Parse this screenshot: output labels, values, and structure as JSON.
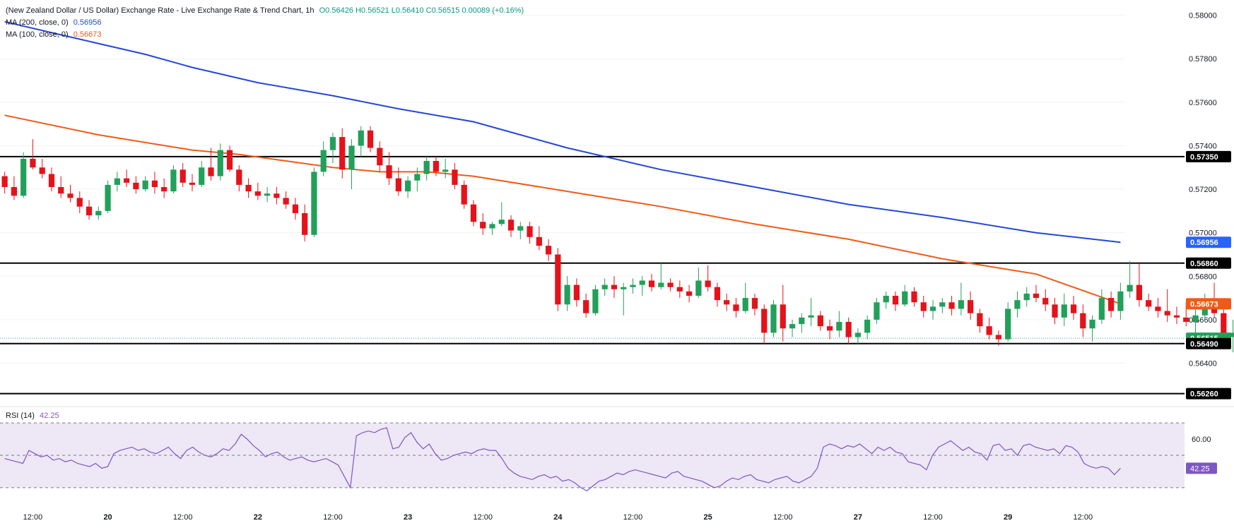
{
  "header": {
    "title": "(New Zealand Dollar / US Dollar) Exchange Rate - Live Exchange Rate & Trend Chart, 1h",
    "ohlc": "O0.56426  H0.56521  L0.56410  C0.56515  0.00089 (+0.16%)",
    "ma200_label": "MA (200, close, 0)",
    "ma200_value": "0.56956",
    "ma100_label": "MA (100, close, 0)",
    "ma100_value": "0.56673"
  },
  "rsi": {
    "label": "RSI (14)",
    "value": "42.25",
    "tick": "60.00",
    "tick_value": 60,
    "band": [
      30,
      70
    ],
    "range": [
      26,
      74
    ],
    "series": [
      48,
      47,
      46,
      45,
      53,
      51,
      49,
      50,
      47,
      48,
      46,
      47,
      45,
      44,
      43,
      45,
      42,
      43,
      51,
      53,
      54,
      55,
      53,
      54,
      52,
      51,
      53,
      55,
      51,
      48,
      53,
      55,
      52,
      50,
      49,
      51,
      54,
      53,
      57,
      63,
      60,
      56,
      53,
      49,
      51,
      52,
      49,
      47,
      48,
      49,
      47,
      46,
      47,
      48,
      46,
      44,
      37,
      30,
      62,
      64,
      65,
      64,
      66,
      67,
      54,
      55,
      61,
      64,
      58,
      54,
      57,
      51,
      47,
      48,
      50,
      51,
      52,
      51,
      53,
      54,
      53,
      53,
      48,
      42,
      39,
      37,
      36,
      35,
      37,
      38,
      36,
      37,
      34,
      35,
      33,
      30,
      28,
      31,
      34,
      35,
      37,
      39,
      38,
      40,
      41,
      40,
      39,
      38,
      37,
      36,
      39,
      40,
      37,
      36,
      35,
      34,
      32,
      30,
      31,
      34,
      36,
      35,
      37,
      38,
      35,
      34,
      33,
      35,
      36,
      37,
      34,
      33,
      35,
      37,
      42,
      55,
      57,
      56,
      54,
      56,
      55,
      57,
      54,
      51,
      55,
      53,
      55,
      52,
      51,
      46,
      45,
      44,
      41,
      50,
      55,
      57,
      59,
      56,
      53,
      55,
      52,
      51,
      47,
      56,
      57,
      53,
      54,
      50,
      56,
      57,
      55,
      54,
      53,
      54,
      51,
      56,
      55,
      52,
      45,
      43,
      42,
      43,
      42,
      38,
      42
    ],
    "colors": {
      "line": "#7e57c2",
      "band_fill": "#ede7f6",
      "band_line": "#787b86",
      "value_tag": "#7e57c2"
    }
  },
  "price_axis": {
    "ticks": [
      "0.58000",
      "0.57800",
      "0.57600",
      "0.57400",
      "0.57200",
      "0.57000",
      "0.56800",
      "0.56600",
      "0.56400"
    ],
    "tick_values": [
      0.58,
      0.578,
      0.576,
      0.574,
      0.572,
      0.57,
      0.568,
      0.566,
      0.564
    ]
  },
  "time_axis": {
    "labels": [
      "12:00",
      "20",
      "12:00",
      "22",
      "12:00",
      "23",
      "12:00",
      "24",
      "12:00",
      "25",
      "12:00",
      "27",
      "12:00",
      "29",
      "12:00"
    ],
    "positions": [
      3,
      11,
      19,
      27,
      35,
      43,
      51,
      59,
      67,
      75,
      83,
      91,
      99,
      107,
      115
    ]
  },
  "chart_data": {
    "type": "candlestick",
    "title": "(New Zealand Dollar / US Dollar) Exchange Rate - Live Exchange Rate & Trend Chart, 1h",
    "interval": "1h",
    "ylim": [
      0.5622,
      0.5807
    ],
    "x_domain": [
      -0.5,
      119.5
    ],
    "candles": [
      [
        0.5726,
        0.5728,
        0.5718,
        0.5721
      ],
      [
        0.5721,
        0.5726,
        0.5715,
        0.5717
      ],
      [
        0.5717,
        0.5737,
        0.5716,
        0.5734
      ],
      [
        0.5734,
        0.5743,
        0.5729,
        0.573
      ],
      [
        0.573,
        0.5734,
        0.5725,
        0.5727
      ],
      [
        0.5727,
        0.573,
        0.5719,
        0.5721
      ],
      [
        0.5721,
        0.5726,
        0.5716,
        0.5718
      ],
      [
        0.5718,
        0.5722,
        0.5714,
        0.5716
      ],
      [
        0.5716,
        0.5719,
        0.5709,
        0.5712
      ],
      [
        0.5712,
        0.5715,
        0.5706,
        0.5708
      ],
      [
        0.5708,
        0.5712,
        0.5706,
        0.571
      ],
      [
        0.571,
        0.5724,
        0.5709,
        0.5722
      ],
      [
        0.5722,
        0.5728,
        0.5719,
        0.5725
      ],
      [
        0.5725,
        0.5729,
        0.5721,
        0.5723
      ],
      [
        0.5723,
        0.5726,
        0.5718,
        0.572
      ],
      [
        0.572,
        0.5726,
        0.5719,
        0.5724
      ],
      [
        0.5724,
        0.5728,
        0.5718,
        0.5721
      ],
      [
        0.5721,
        0.5725,
        0.5716,
        0.5719
      ],
      [
        0.5719,
        0.5731,
        0.5718,
        0.5729
      ],
      [
        0.5729,
        0.5732,
        0.5721,
        0.5723
      ],
      [
        0.5723,
        0.5727,
        0.5719,
        0.5722
      ],
      [
        0.5722,
        0.5733,
        0.5721,
        0.573
      ],
      [
        0.573,
        0.5739,
        0.5724,
        0.5726
      ],
      [
        0.5726,
        0.5741,
        0.5724,
        0.5738
      ],
      [
        0.5738,
        0.574,
        0.5728,
        0.5729
      ],
      [
        0.5729,
        0.5731,
        0.5719,
        0.5722
      ],
      [
        0.5722,
        0.5725,
        0.5716,
        0.5719
      ],
      [
        0.5719,
        0.5723,
        0.5715,
        0.5717
      ],
      [
        0.5717,
        0.5721,
        0.5714,
        0.5718
      ],
      [
        0.5718,
        0.5721,
        0.5713,
        0.5716
      ],
      [
        0.5716,
        0.5719,
        0.5711,
        0.5713
      ],
      [
        0.5713,
        0.5716,
        0.5706,
        0.5709
      ],
      [
        0.5709,
        0.5713,
        0.5696,
        0.5699
      ],
      [
        0.5699,
        0.573,
        0.5698,
        0.5728
      ],
      [
        0.5728,
        0.5742,
        0.5726,
        0.5738
      ],
      [
        0.5738,
        0.5746,
        0.5732,
        0.5744
      ],
      [
        0.5744,
        0.5748,
        0.5725,
        0.5729
      ],
      [
        0.5729,
        0.5743,
        0.572,
        0.574
      ],
      [
        0.574,
        0.5749,
        0.5735,
        0.5747
      ],
      [
        0.5747,
        0.5749,
        0.5737,
        0.5739
      ],
      [
        0.5739,
        0.5742,
        0.5728,
        0.5731
      ],
      [
        0.5731,
        0.5737,
        0.5722,
        0.5725
      ],
      [
        0.5725,
        0.573,
        0.5717,
        0.5719
      ],
      [
        0.5719,
        0.5726,
        0.5716,
        0.5724
      ],
      [
        0.5724,
        0.573,
        0.5719,
        0.5727
      ],
      [
        0.5727,
        0.5735,
        0.5724,
        0.5733
      ],
      [
        0.5733,
        0.5735,
        0.5726,
        0.5728
      ],
      [
        0.5728,
        0.5734,
        0.5725,
        0.5729
      ],
      [
        0.5729,
        0.5732,
        0.572,
        0.5722
      ],
      [
        0.5722,
        0.5724,
        0.5711,
        0.5713
      ],
      [
        0.5713,
        0.5715,
        0.5703,
        0.5705
      ],
      [
        0.5705,
        0.5709,
        0.5699,
        0.5702
      ],
      [
        0.5702,
        0.5705,
        0.5699,
        0.5704
      ],
      [
        0.5704,
        0.5714,
        0.5703,
        0.5706
      ],
      [
        0.5706,
        0.5708,
        0.5698,
        0.5701
      ],
      [
        0.5701,
        0.5705,
        0.5697,
        0.5703
      ],
      [
        0.5703,
        0.5705,
        0.5695,
        0.5698
      ],
      [
        0.5698,
        0.5703,
        0.5692,
        0.5694
      ],
      [
        0.5694,
        0.5697,
        0.5687,
        0.569
      ],
      [
        0.569,
        0.5693,
        0.5664,
        0.5667
      ],
      [
        0.5667,
        0.568,
        0.5664,
        0.5676
      ],
      [
        0.5676,
        0.5679,
        0.5666,
        0.5669
      ],
      [
        0.5669,
        0.5672,
        0.5661,
        0.5663
      ],
      [
        0.5663,
        0.5676,
        0.5662,
        0.5674
      ],
      [
        0.5674,
        0.5679,
        0.5671,
        0.5676
      ],
      [
        0.5676,
        0.568,
        0.567,
        0.5674
      ],
      [
        0.5674,
        0.5677,
        0.5662,
        0.5675
      ],
      [
        0.5675,
        0.5679,
        0.5672,
        0.5676
      ],
      [
        0.5676,
        0.568,
        0.5671,
        0.5678
      ],
      [
        0.5678,
        0.5681,
        0.5673,
        0.5675
      ],
      [
        0.5675,
        0.5686,
        0.5674,
        0.5677
      ],
      [
        0.5677,
        0.5679,
        0.5673,
        0.5675
      ],
      [
        0.5675,
        0.5678,
        0.567,
        0.5673
      ],
      [
        0.5673,
        0.5676,
        0.5668,
        0.5671
      ],
      [
        0.5671,
        0.5684,
        0.567,
        0.5678
      ],
      [
        0.5678,
        0.5685,
        0.5673,
        0.5675
      ],
      [
        0.5675,
        0.5677,
        0.5666,
        0.5669
      ],
      [
        0.5669,
        0.5672,
        0.5664,
        0.5667
      ],
      [
        0.5667,
        0.567,
        0.5661,
        0.5664
      ],
      [
        0.5664,
        0.5677,
        0.5663,
        0.567
      ],
      [
        0.567,
        0.5672,
        0.5662,
        0.5665
      ],
      [
        0.5665,
        0.5667,
        0.5649,
        0.5654
      ],
      [
        0.5654,
        0.5669,
        0.5652,
        0.5667
      ],
      [
        0.5667,
        0.5676,
        0.565,
        0.5656
      ],
      [
        0.5656,
        0.566,
        0.5652,
        0.5658
      ],
      [
        0.5658,
        0.5663,
        0.5654,
        0.5661
      ],
      [
        0.5661,
        0.567,
        0.5657,
        0.5662
      ],
      [
        0.5662,
        0.5664,
        0.5655,
        0.5657
      ],
      [
        0.5657,
        0.566,
        0.5651,
        0.5655
      ],
      [
        0.5655,
        0.5664,
        0.5652,
        0.5659
      ],
      [
        0.5659,
        0.5661,
        0.5649,
        0.5652
      ],
      [
        0.5652,
        0.5656,
        0.5649,
        0.5654
      ],
      [
        0.5654,
        0.5662,
        0.5651,
        0.566
      ],
      [
        0.566,
        0.567,
        0.5658,
        0.5668
      ],
      [
        0.5668,
        0.5673,
        0.5665,
        0.5671
      ],
      [
        0.5671,
        0.5673,
        0.5664,
        0.5667
      ],
      [
        0.5667,
        0.5676,
        0.5666,
        0.5673
      ],
      [
        0.5673,
        0.5675,
        0.5666,
        0.5668
      ],
      [
        0.5668,
        0.5671,
        0.5661,
        0.5664
      ],
      [
        0.5664,
        0.5669,
        0.566,
        0.5666
      ],
      [
        0.5666,
        0.567,
        0.5663,
        0.5668
      ],
      [
        0.5668,
        0.5671,
        0.5662,
        0.5665
      ],
      [
        0.5665,
        0.5677,
        0.5662,
        0.5669
      ],
      [
        0.5669,
        0.5673,
        0.566,
        0.5663
      ],
      [
        0.5663,
        0.5665,
        0.5654,
        0.5657
      ],
      [
        0.5657,
        0.5661,
        0.5651,
        0.5653
      ],
      [
        0.5653,
        0.5655,
        0.5648,
        0.5651
      ],
      [
        0.5651,
        0.5668,
        0.565,
        0.5665
      ],
      [
        0.5665,
        0.5673,
        0.5661,
        0.5669
      ],
      [
        0.5669,
        0.5675,
        0.5666,
        0.5672
      ],
      [
        0.5672,
        0.5676,
        0.5668,
        0.567
      ],
      [
        0.567,
        0.5674,
        0.5664,
        0.5667
      ],
      [
        0.5667,
        0.567,
        0.5658,
        0.5661
      ],
      [
        0.5661,
        0.5672,
        0.5657,
        0.5667
      ],
      [
        0.5667,
        0.5671,
        0.566,
        0.5663
      ],
      [
        0.5663,
        0.5667,
        0.5652,
        0.5656
      ],
      [
        0.5656,
        0.5662,
        0.565,
        0.566
      ],
      [
        0.566,
        0.5674,
        0.5658,
        0.567
      ],
      [
        0.567,
        0.5673,
        0.5661,
        0.5664
      ],
      [
        0.5664,
        0.5677,
        0.566,
        0.5673
      ],
      [
        0.5673,
        0.5687,
        0.567,
        0.5676
      ],
      [
        0.5676,
        0.5686,
        0.5666,
        0.5669
      ],
      [
        0.5669,
        0.5672,
        0.5664,
        0.5666
      ],
      [
        0.5666,
        0.567,
        0.5661,
        0.5664
      ],
      [
        0.5664,
        0.5674,
        0.5659,
        0.5662
      ],
      [
        0.5662,
        0.5666,
        0.5658,
        0.5661
      ],
      [
        0.5661,
        0.5668,
        0.5657,
        0.5659
      ],
      [
        0.5659,
        0.5665,
        0.5654,
        0.5662
      ],
      [
        0.5662,
        0.5672,
        0.5659,
        0.5669
      ],
      [
        0.5669,
        0.5677,
        0.5661,
        0.5663
      ],
      [
        0.5663,
        0.5666,
        0.5648,
        0.5652
      ],
      [
        0.5652,
        0.566,
        0.5645,
        0.5654
      ],
      [
        0.5654,
        0.5666,
        0.565,
        0.5651
      ],
      [
        0.5651,
        0.566,
        0.5643,
        0.5647
      ],
      [
        0.5643,
        0.5653,
        0.5641,
        0.5644
      ],
      [
        0.56426,
        0.56521,
        0.5641,
        0.56515
      ]
    ],
    "ma200": {
      "name": "MA (200, close, 0)",
      "x": [
        0,
        8,
        15,
        20,
        27,
        35,
        42,
        50,
        60,
        70,
        80,
        90,
        100,
        110,
        119
      ],
      "y": [
        0.5797,
        0.5789,
        0.5782,
        0.5776,
        0.5769,
        0.5763,
        0.5757,
        0.5751,
        0.5739,
        0.5729,
        0.5721,
        0.5713,
        0.5707,
        0.57,
        0.56956
      ]
    },
    "ma100": {
      "name": "MA (100, close, 0)",
      "x": [
        0,
        10,
        20,
        25,
        30,
        35,
        40,
        45,
        50,
        60,
        70,
        80,
        90,
        100,
        110,
        119
      ],
      "y": [
        0.5754,
        0.5745,
        0.5738,
        0.5736,
        0.5733,
        0.573,
        0.5728,
        0.5728,
        0.5726,
        0.5719,
        0.5712,
        0.5704,
        0.5697,
        0.5688,
        0.5681,
        0.56673
      ]
    },
    "horizontal_levels": [
      {
        "value": 0.5735,
        "label": "0.57350"
      },
      {
        "value": 0.5686,
        "label": "0.56860"
      },
      {
        "value": 0.5649,
        "label": "0.56490"
      },
      {
        "value": 0.5626,
        "label": "0.56260"
      }
    ],
    "last_price": {
      "value": 0.56515,
      "label": "0.56515"
    },
    "price_tags": [
      {
        "value": 0.56956,
        "label": "0.56956",
        "color": "#2962ff"
      },
      {
        "value": 0.56673,
        "label": "0.56673",
        "color": "#f05a16"
      }
    ],
    "colors": {
      "up": "#26a69a_unused",
      "bull": "#22a05a",
      "bear": "#e5121a",
      "ma200": "#2447d8",
      "ma100": "#f05a16",
      "level": "#000000",
      "last_price_line": "#26a69a",
      "axis_text": "#131722"
    }
  }
}
